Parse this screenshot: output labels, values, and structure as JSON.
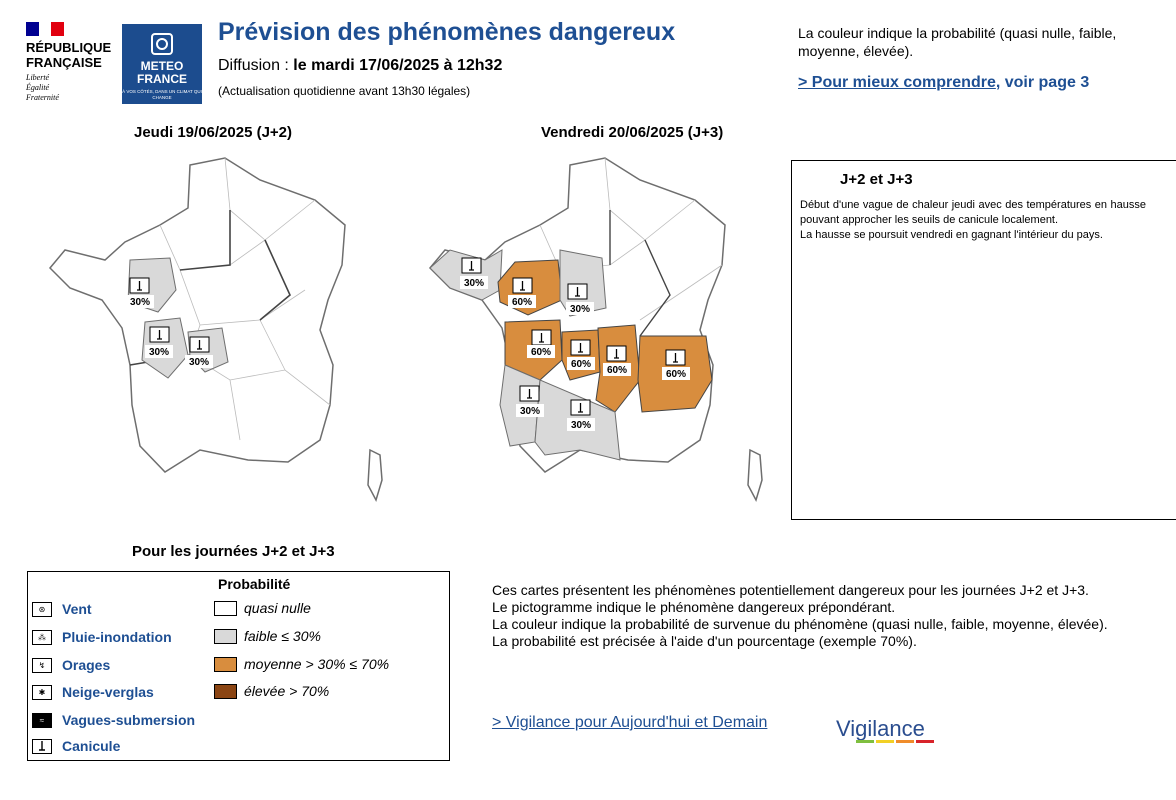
{
  "header": {
    "republic": "RÉPUBLIQUE FRANÇAISE",
    "motto": [
      "Liberté",
      "Égalité",
      "Fraternité"
    ],
    "logo_name": [
      "METEO",
      "FRANCE"
    ],
    "logo_slogan": "À VOS CÔTÉS, DANS UN CLIMAT QUI CHANGE",
    "title": "Prévision des phénomènes dangereux",
    "diffusion_label": "Diffusion : ",
    "diffusion_value": "le mardi 17/06/2025 à 12h32",
    "actualisation": "(Actualisation quotidienne avant 13h30 légales)",
    "prob_note": "La couleur indique la probabilité (quasi nulle, faible, moyenne, élevée).",
    "comprendre_link": "> Pour mieux comprendre",
    "comprendre_rest": ", voir page 3"
  },
  "maps": [
    {
      "title": "Jeudi 19/06/2025 (J+2)",
      "zones": [
        {
          "label": "30%",
          "level": "faible"
        },
        {
          "label": "30%",
          "level": "faible"
        },
        {
          "label": "30%",
          "level": "faible"
        }
      ]
    },
    {
      "title": "Vendredi 20/06/2025 (J+3)",
      "zones": [
        {
          "label": "30%",
          "level": "faible"
        },
        {
          "label": "60%",
          "level": "moyenne"
        },
        {
          "label": "30%",
          "level": "faible"
        },
        {
          "label": "60%",
          "level": "moyenne"
        },
        {
          "label": "60%",
          "level": "moyenne"
        },
        {
          "label": "60%",
          "level": "moyenne"
        },
        {
          "label": "60%",
          "level": "moyenne"
        },
        {
          "label": "30%",
          "level": "faible"
        },
        {
          "label": "30%",
          "level": "faible"
        }
      ]
    }
  ],
  "comment": {
    "title": "J+2 et J+3",
    "lines": [
      "Début d'une vague de chaleur jeudi avec des températures en hausse pouvant approcher les seuils de canicule localement.",
      "La hausse se poursuit vendredi en gagnant l'intérieur du pays."
    ]
  },
  "legend": {
    "title": "Pour les journées J+2 et J+3",
    "phenomena": [
      "Vent",
      "Pluie-inondation",
      "Orages",
      "Neige-verglas",
      "Vagues-submersion",
      "Canicule"
    ],
    "prob_title": "Probabilité",
    "probabilities": [
      {
        "label": "quasi nulle",
        "color": "#ffffff"
      },
      {
        "label": "faible ≤ 30%",
        "color": "#d9d9d9"
      },
      {
        "label": "moyenne > 30% ≤ 70%",
        "color": "#d88d3e"
      },
      {
        "label": "élevée > 70%",
        "color": "#8b4513"
      }
    ]
  },
  "explain": [
    "Ces cartes présentent les phénomènes potentiellement dangereux pour les journées J+2 et J+3.",
    "Le pictogramme indique le phénomène dangereux prépondérant.",
    "La couleur indique la probabilité de survenue du phénomène (quasi nulle, faible, moyenne, élevée).",
    "La probabilité est précisée à l'aide d'un pourcentage (exemple 70%)."
  ],
  "vigilance_link": "> Vigilance pour Aujourd'hui et Demain",
  "vigilance_logo": "Vigilance"
}
